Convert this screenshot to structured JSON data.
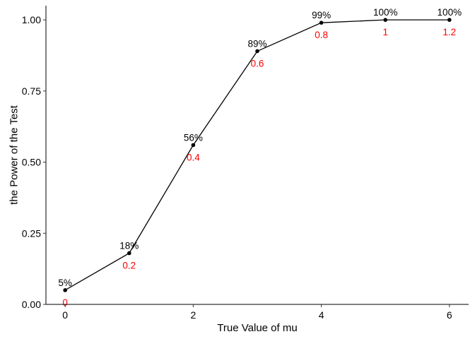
{
  "chart_data": {
    "type": "line",
    "title": "",
    "xlabel": "True Value of mu",
    "ylabel": "the Power of the Test",
    "xlim": [
      -0.3,
      6.3
    ],
    "ylim": [
      0,
      1.05
    ],
    "x_ticks": [
      0,
      2,
      4,
      6
    ],
    "x_tick_labels": [
      "0",
      "2",
      "4",
      "6"
    ],
    "y_ticks": [
      0,
      0.25,
      0.5,
      0.75,
      1.0
    ],
    "y_tick_labels": [
      "0.00",
      "0.25",
      "0.50",
      "0.75",
      "1.00"
    ],
    "grid": false,
    "legend": "none",
    "x": [
      0,
      1,
      2,
      3,
      4,
      5,
      6
    ],
    "y": [
      0.05,
      0.18,
      0.56,
      0.89,
      0.99,
      1.0,
      1.0
    ],
    "point_labels": [
      "5%",
      "18%",
      "56%",
      "89%",
      "99%",
      "100%",
      "100%"
    ],
    "mu_labels": [
      "0",
      "0.2",
      "0.4",
      "0.6",
      "0.8",
      "1",
      "1.2"
    ],
    "colors": {
      "line": "#000000",
      "point": "#000000",
      "point_label": "#000000",
      "mu_label": "#ff0000"
    }
  }
}
